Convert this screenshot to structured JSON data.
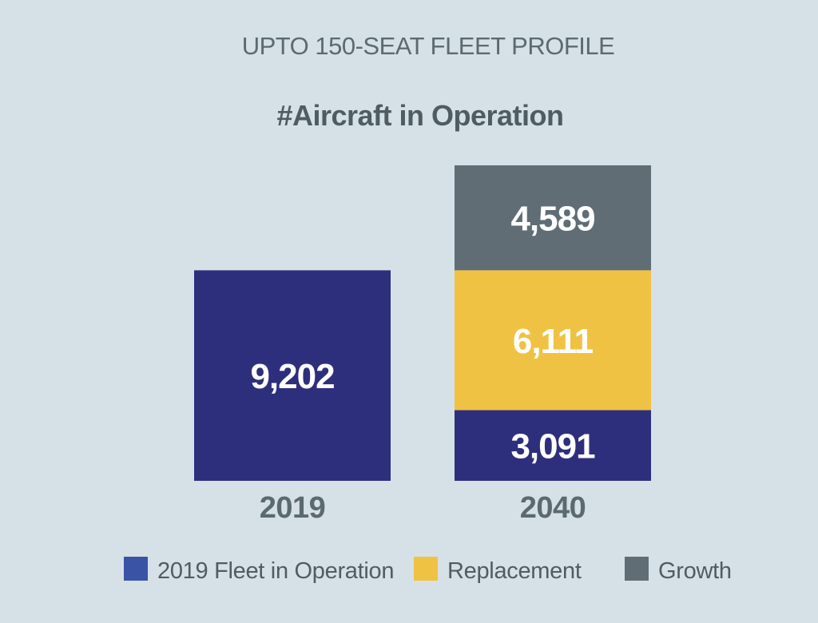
{
  "chart_data": {
    "type": "bar",
    "stacked": true,
    "title": "UPTO 150-SEAT FLEET PROFILE",
    "subtitle": "#Aircraft in Operation",
    "categories": [
      "2019",
      "2040"
    ],
    "series": [
      {
        "name": "2019 Fleet in Operation",
        "color": "#2e2f7c",
        "values": [
          9202,
          3091
        ],
        "labels": [
          "9,202",
          "3,091"
        ]
      },
      {
        "name": "Replacement",
        "color": "#f0c244",
        "values": [
          0,
          6111
        ],
        "labels": [
          "",
          "6,111"
        ]
      },
      {
        "name": "Growth",
        "color": "#606d75",
        "values": [
          0,
          4589
        ],
        "labels": [
          "",
          "4,589"
        ]
      }
    ],
    "ylim": [
      0,
      13791
    ],
    "grid": false,
    "legend_position": "bottom"
  }
}
